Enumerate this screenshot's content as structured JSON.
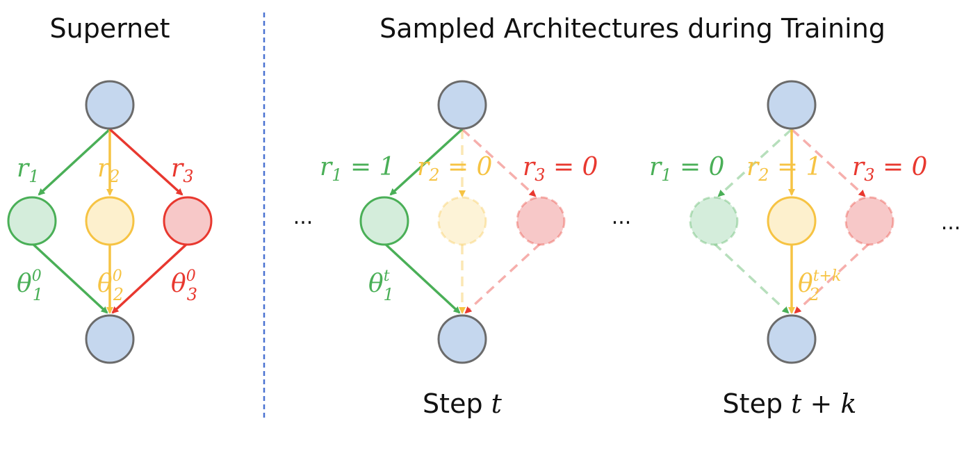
{
  "titles": {
    "left": "Supernet",
    "right": "Sampled Architectures during Training"
  },
  "ellipsis": "...",
  "colors": {
    "green": "#4aaf57",
    "yellow": "#f6c343",
    "red": "#e8382f",
    "node_blue": "#c5d7ee",
    "node_stroke": "#6b6b6b",
    "divider": "#4a72d1"
  },
  "supernet": {
    "r_labels": [
      {
        "base": "r",
        "sub": "1"
      },
      {
        "base": "r",
        "sub": "2"
      },
      {
        "base": "r",
        "sub": "3"
      }
    ],
    "theta_labels": [
      {
        "base": "θ",
        "sub": "1",
        "sup": "0"
      },
      {
        "base": "θ",
        "sub": "2",
        "sup": "0"
      },
      {
        "base": "θ",
        "sub": "3",
        "sup": "0"
      }
    ]
  },
  "step_t": {
    "label_text": "Step ",
    "label_var": "t",
    "r_labels": [
      {
        "base": "r",
        "sub": "1",
        "eq": " = 1"
      },
      {
        "base": "r",
        "sub": "2",
        "eq": " = 0"
      },
      {
        "base": "r",
        "sub": "3",
        "eq": " = 0"
      }
    ],
    "theta": {
      "base": "θ",
      "sub": "1",
      "sup": "t"
    }
  },
  "step_tk": {
    "label_text": "Step ",
    "label_var": "t + k",
    "r_labels": [
      {
        "base": "r",
        "sub": "1",
        "eq": " = 0"
      },
      {
        "base": "r",
        "sub": "2",
        "eq": " = 1"
      },
      {
        "base": "r",
        "sub": "3",
        "eq": " = 0"
      }
    ],
    "theta": {
      "base": "θ",
      "sub": "2",
      "sup": "t+k"
    }
  }
}
